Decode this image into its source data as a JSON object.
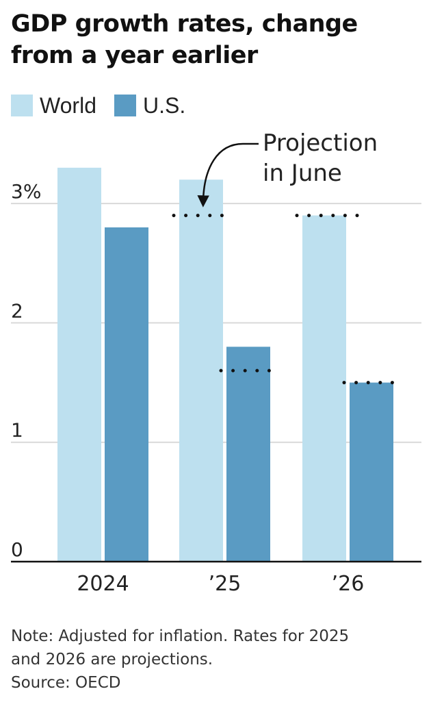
{
  "title_lines": [
    "GDP growth rates, change",
    "from a year earlier"
  ],
  "legend": [
    {
      "label": "World",
      "color": "#bde0ef"
    },
    {
      "label": "U.S.",
      "color": "#5a9bc3"
    }
  ],
  "chart_data": {
    "type": "bar",
    "categories": [
      "2024",
      "’25",
      "’26"
    ],
    "series": [
      {
        "name": "World",
        "values": [
          3.3,
          3.2,
          2.9
        ],
        "color": "#bde0ef"
      },
      {
        "name": "U.S.",
        "values": [
          2.8,
          1.8,
          1.5
        ],
        "color": "#5a9bc3"
      }
    ],
    "june_projection": {
      "World": [
        null,
        2.9,
        2.9
      ],
      "U.S.": [
        null,
        1.6,
        1.5
      ]
    },
    "ylim": [
      0,
      3.5
    ],
    "yticks": [
      0,
      1,
      2,
      3
    ],
    "ytick_labels": [
      "0",
      "1",
      "2",
      "3%"
    ],
    "grid": true,
    "annotation": {
      "lines": [
        "Projection",
        "in June"
      ]
    }
  },
  "note_lines": [
    "Note: Adjusted for inflation. Rates for 2025",
    "and 2026 are projections.",
    "Source: OECD"
  ]
}
